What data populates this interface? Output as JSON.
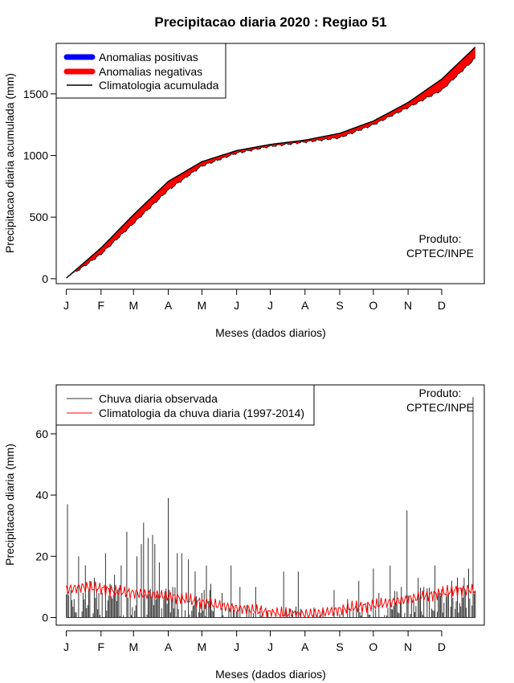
{
  "title": "Precipitacao diaria 2020 : Regiao 51",
  "credit_line1": "Produto:",
  "credit_line2": "CPTEC/INPE",
  "chart_data": [
    {
      "type": "area",
      "ylabel": "Precipitacao diaria acumulada (mm)",
      "xlabel": "Meses (dados diarios)",
      "ylim": [
        -40,
        1910
      ],
      "yticks": [
        0,
        500,
        1000,
        1500
      ],
      "xlim_days": [
        -8,
        374
      ],
      "month_labels": [
        "J",
        "F",
        "M",
        "A",
        "M",
        "J",
        "J",
        "A",
        "S",
        "O",
        "N",
        "D"
      ],
      "month_start_days": [
        1,
        32,
        61,
        92,
        122,
        153,
        183,
        214,
        245,
        275,
        306,
        336
      ],
      "legend": [
        {
          "label": "Anomalias positivas",
          "color": "#0000ff"
        },
        {
          "label": "Anomalias negativas",
          "color": "#ff0000"
        },
        {
          "label": "Climatologia acumulada",
          "color": "#000000"
        }
      ],
      "climatology_cumulative": {
        "days": [
          1,
          32,
          61,
          92,
          122,
          153,
          183,
          214,
          245,
          275,
          306,
          336,
          366
        ],
        "values": [
          5,
          250,
          520,
          790,
          950,
          1040,
          1090,
          1125,
          1180,
          1280,
          1430,
          1620,
          1880
        ]
      },
      "observed_cumulative": {
        "days": [
          1,
          5,
          10,
          15,
          32,
          61,
          92,
          122,
          153,
          183,
          214,
          245,
          275,
          306,
          336,
          366
        ],
        "values": [
          0,
          40,
          60,
          90,
          200,
          450,
          720,
          915,
          1020,
          1075,
          1110,
          1145,
          1250,
          1390,
          1530,
          1790
        ]
      }
    },
    {
      "type": "bar",
      "ylabel": "Precipitacao diaria (mm)",
      "xlabel": "Meses (dados diarios)",
      "ylim": [
        -2.5,
        76
      ],
      "yticks": [
        0,
        20,
        40,
        60
      ],
      "xlim_days": [
        -8,
        374
      ],
      "month_labels": [
        "J",
        "F",
        "M",
        "A",
        "M",
        "J",
        "J",
        "A",
        "S",
        "O",
        "N",
        "D"
      ],
      "month_start_days": [
        1,
        32,
        61,
        92,
        122,
        153,
        183,
        214,
        245,
        275,
        306,
        336
      ],
      "legend": [
        {
          "label": "Chuva diaria observada",
          "color": "#333333"
        },
        {
          "label": "Climatologia da chuva diaria (1997-2014)",
          "color": "#ff0000"
        }
      ],
      "observed_daily_peaks": {
        "days": [
          2,
          8,
          12,
          18,
          22,
          26,
          30,
          36,
          40,
          44,
          50,
          55,
          58,
          64,
          68,
          70,
          74,
          78,
          80,
          84,
          86,
          88,
          92,
          96,
          100,
          104,
          110,
          116,
          122,
          126,
          130,
          140,
          148,
          156,
          162,
          170,
          180,
          195,
          200,
          208,
          225,
          240,
          252,
          262,
          270,
          275,
          280,
          290,
          295,
          300,
          305,
          315,
          320,
          330,
          335,
          345,
          350,
          356,
          360,
          364
        ],
        "values": [
          37,
          6,
          20,
          17,
          12,
          13,
          8,
          21,
          11,
          14,
          17,
          28,
          7,
          20,
          24,
          31,
          26,
          27,
          24,
          18,
          3,
          6,
          39,
          10,
          21,
          21,
          19,
          15,
          8,
          17,
          11,
          8,
          17,
          10,
          4,
          10,
          2,
          15,
          3,
          15,
          1,
          9,
          6,
          12,
          4,
          16,
          8,
          17,
          5,
          10,
          35,
          13,
          10,
          17,
          7,
          12,
          13,
          13,
          16,
          72
        ]
      },
      "climatology_daily": {
        "days": [
          1,
          15,
          32,
          46,
          61,
          76,
          92,
          107,
          122,
          137,
          153,
          168,
          183,
          198,
          214,
          229,
          245,
          260,
          275,
          290,
          306,
          321,
          336,
          351,
          366
        ],
        "values": [
          9,
          10,
          9.5,
          8.5,
          8,
          7.5,
          7,
          6,
          5,
          4,
          3,
          2.5,
          1.5,
          1.2,
          1,
          1.5,
          2.5,
          3.5,
          4,
          5,
          6,
          7,
          8,
          9,
          9
        ]
      }
    }
  ]
}
